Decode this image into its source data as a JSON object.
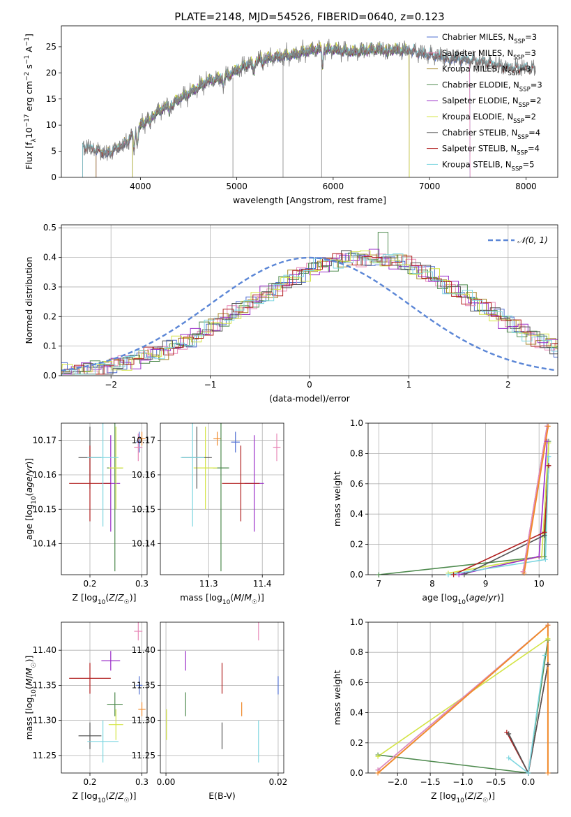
{
  "figure_title": "PLATE=2148, MJD=54526, FIBERID=0640, z=0.123",
  "colors": {
    "Chabrier MILES": "#4f6fd1",
    "Salpeter MILES": "#e889b8",
    "Kroupa MILES": "#a6872a",
    "Chabrier ELODIE": "#4e8a4e",
    "Salpeter ELODIE": "#9a2cc8",
    "Kroupa ELODIE": "#d4e447",
    "Chabrier STELIB": "#555555",
    "Salpeter STELIB": "#b01e1e",
    "Kroupa STELIB": "#7dd6e0",
    "orange": "#f08a2c",
    "gaussian": "#5b86d6"
  },
  "chart_data": [
    {
      "id": "spectrum",
      "type": "line",
      "xlabel": "wavelength [Angstrom, rest frame]",
      "ylabel_html": "Flux [f<tspan baseline-shift='sub' font-size='9'>λ</tspan>10<tspan baseline-shift='super' font-size='9'>−17</tspan> erg cm<tspan baseline-shift='super' font-size='9'>−2</tspan> s<tspan baseline-shift='super' font-size='9'>−1</tspan> A<tspan baseline-shift='super' font-size='9'>−1</tspan>]",
      "xlim": [
        3180,
        8330
      ],
      "ylim": [
        0,
        29
      ],
      "xticks": [
        4000,
        5000,
        6000,
        7000,
        8000
      ],
      "yticks": [
        0,
        5,
        10,
        15,
        20,
        25
      ],
      "grid": false,
      "legend_placement": "right",
      "legend": [
        {
          "label": "Chabrier MILES, N",
          "sub": "SSP",
          "tail": "=3",
          "color_key": "Chabrier MILES"
        },
        {
          "label": "Salpeter MILES, N",
          "sub": "SSP",
          "tail": "=3",
          "color_key": "Salpeter MILES"
        },
        {
          "label": "Kroupa MILES, N",
          "sub": "SSP",
          "tail": "=3",
          "color_key": "Kroupa MILES"
        },
        {
          "label": "Chabrier ELODIE, N",
          "sub": "SSP",
          "tail": "=3",
          "color_key": "Chabrier ELODIE"
        },
        {
          "label": "Salpeter ELODIE, N",
          "sub": "SSP",
          "tail": "=2",
          "color_key": "Salpeter ELODIE"
        },
        {
          "label": "Kroupa ELODIE, N",
          "sub": "SSP",
          "tail": "=2",
          "color_key": "Kroupa ELODIE"
        },
        {
          "label": "Chabrier STELIB, N",
          "sub": "SSP",
          "tail": "=4",
          "color_key": "Chabrier STELIB"
        },
        {
          "label": "Salpeter STELIB, N",
          "sub": "SSP",
          "tail": "=4",
          "color_key": "Salpeter STELIB"
        },
        {
          "label": "Kroupa STELIB, N",
          "sub": "SSP",
          "tail": "=5",
          "color_key": "Kroupa STELIB"
        }
      ],
      "continuum": {
        "x": [
          3400,
          3550,
          3650,
          3750,
          3850,
          3950,
          4100,
          4300,
          4500,
          4700,
          4850,
          5000,
          5200,
          5400,
          5600,
          5800,
          6000,
          6200,
          6400,
          6600,
          6800,
          7000,
          7200,
          7400,
          7600,
          7800,
          8000,
          8100
        ],
        "y": [
          6.0,
          5.2,
          4.5,
          5.5,
          6.5,
          9.0,
          11.5,
          14.0,
          16.0,
          18.5,
          19.0,
          20.5,
          22.5,
          23.0,
          23.5,
          24.5,
          24.5,
          24.0,
          24.5,
          24.5,
          24.3,
          23.5,
          23.0,
          22.5,
          22.0,
          21.0,
          21.0,
          20.8
        ]
      },
      "model_start": {
        "Chabrier MILES": 3540,
        "Salpeter MILES": 3540,
        "Kroupa MILES": 3540,
        "Chabrier ELODIE": 3920,
        "Salpeter ELODIE": 3920,
        "Kroupa ELODIE": 3920,
        "Chabrier STELIB": 3400,
        "Salpeter STELIB": 3400,
        "Kroupa STELIB": 3400
      },
      "model_end": {
        "Chabrier MILES": 7420,
        "Salpeter MILES": 7420,
        "Kroupa MILES": 6790,
        "Chabrier ELODIE": 6790,
        "Salpeter ELODIE": 6790,
        "Kroupa ELODIE": 6790,
        "Chabrier STELIB": 8100,
        "Salpeter STELIB": 8100,
        "Kroupa STELIB": 8100
      },
      "spikes": [
        4960,
        5480,
        5880
      ]
    },
    {
      "id": "residuals",
      "type": "histogram",
      "xlabel": "(data-model)/error",
      "ylabel": "Normed distribution",
      "xlim": [
        -2.5,
        2.5
      ],
      "ylim": [
        0,
        0.51
      ],
      "xticks": [
        -2,
        -1,
        0,
        1,
        2
      ],
      "yticks": [
        0.0,
        0.1,
        0.2,
        0.3,
        0.4,
        0.5
      ],
      "grid": true,
      "legend_placement": "top-right",
      "gaussian_label": "𝒩(0, 1)",
      "bin_width": 0.1,
      "hist_mean": 0.55,
      "hist_sigma": 1.15,
      "hist_peak": 0.4
    },
    {
      "id": "age_vs_Z",
      "type": "scatter",
      "xlabel_html": "Z [log<tspan baseline-shift='sub' font-size='9'>10</tspan>(<tspan font-style='italic'>Z</tspan>/<tspan font-style='italic'>Z</tspan><tspan baseline-shift='sub' font-size='9'>☉</tspan>)]",
      "ylabel_html": "age  [log<tspan baseline-shift='sub' font-size='9'>10</tspan>(<tspan font-style='italic'>age</tspan>/<tspan font-style='italic'>yr</tspan>)]",
      "xlim": [
        0.145,
        0.31
      ],
      "ylim": [
        10.131,
        10.175
      ],
      "xticks": [
        0.2,
        0.3
      ],
      "yticks": [
        10.14,
        10.15,
        10.16,
        10.17
      ],
      "grid": true
    },
    {
      "id": "age_vs_mass",
      "type": "scatter",
      "xlabel_html": "mass [log<tspan baseline-shift='sub' font-size='9'>10</tspan>(<tspan font-style='italic'>M</tspan>/<tspan font-style='italic'>M</tspan><tspan baseline-shift='sub' font-size='9'>☉</tspan>)]",
      "xlim": [
        11.21,
        11.44
      ],
      "ylim": [
        10.131,
        10.175
      ],
      "xticks": [
        11.3,
        11.4
      ],
      "yticks": [
        10.14,
        10.15,
        10.16,
        10.17
      ],
      "grid": true
    },
    {
      "id": "weight_vs_age",
      "type": "line",
      "xlabel_html": "age  [log<tspan baseline-shift='sub' font-size='9'>10</tspan>(<tspan font-style='italic'>age</tspan>/<tspan font-style='italic'>yr</tspan>)]",
      "ylabel": "mass weight",
      "xlim": [
        6.8,
        10.35
      ],
      "ylim": [
        0,
        1.0
      ],
      "xticks": [
        7,
        8,
        9,
        10
      ],
      "yticks": [
        0.0,
        0.2,
        0.4,
        0.6,
        0.8,
        1.0
      ],
      "grid": true,
      "series": [
        {
          "color_key": "Chabrier ELODIE",
          "x": [
            7.0,
            10.1,
            10.18
          ],
          "y": [
            0.0,
            0.12,
            0.88
          ]
        },
        {
          "color_key": "Kroupa ELODIE",
          "x": [
            8.3,
            10.05,
            10.18
          ],
          "y": [
            0.01,
            0.12,
            0.87
          ]
        },
        {
          "color_key": "Salpeter ELODIE",
          "x": [
            8.5,
            10.0,
            10.15
          ],
          "y": [
            0.0,
            0.12,
            0.88
          ]
        },
        {
          "color_key": "Chabrier STELIB",
          "x": [
            8.6,
            10.1,
            10.18
          ],
          "y": [
            0.0,
            0.26,
            0.72
          ]
        },
        {
          "color_key": "Salpeter STELIB",
          "x": [
            8.4,
            10.1,
            10.18
          ],
          "y": [
            0.0,
            0.28,
            0.72
          ]
        },
        {
          "color_key": "Kroupa STELIB",
          "x": [
            8.3,
            10.12,
            10.18
          ],
          "y": [
            0.0,
            0.1,
            0.78
          ]
        },
        {
          "color_key": "Chabrier MILES",
          "x": [
            9.7,
            10.15
          ],
          "y": [
            0.02,
            0.98
          ]
        },
        {
          "color_key": "Salpeter MILES",
          "x": [
            9.7,
            10.15
          ],
          "y": [
            0.02,
            0.98
          ]
        },
        {
          "color_key": "orange",
          "x": [
            9.72,
            10.17
          ],
          "y": [
            0.01,
            0.98
          ]
        }
      ]
    },
    {
      "id": "mass_vs_Z",
      "type": "scatter",
      "xlabel_html": "Z [log<tspan baseline-shift='sub' font-size='9'>10</tspan>(<tspan font-style='italic'>Z</tspan>/<tspan font-style='italic'>Z</tspan><tspan baseline-shift='sub' font-size='9'>☉</tspan>)]",
      "ylabel_html": "mass [log<tspan baseline-shift='sub' font-size='9'>10</tspan>(<tspan font-style='italic'>M</tspan>/<tspan font-style='italic'>M</tspan><tspan baseline-shift='sub' font-size='9'>☉</tspan>)]",
      "xlim": [
        0.145,
        0.31
      ],
      "ylim": [
        11.225,
        11.44
      ],
      "xticks": [
        0.2,
        0.3
      ],
      "yticks": [
        11.25,
        11.3,
        11.35,
        11.4
      ],
      "grid": true
    },
    {
      "id": "mass_vs_ebv",
      "type": "scatter",
      "xlabel": "E(B-V)",
      "xlim": [
        -0.001,
        0.021
      ],
      "ylim": [
        11.225,
        11.44
      ],
      "xticks": [
        0.0,
        0.02
      ],
      "yticks": [
        11.25,
        11.3,
        11.35,
        11.4
      ],
      "grid": true
    },
    {
      "id": "weight_vs_Z",
      "type": "line",
      "xlabel_html": "Z [log<tspan baseline-shift='sub' font-size='9'>10</tspan>(<tspan font-style='italic'>Z</tspan>/<tspan font-style='italic'>Z</tspan><tspan baseline-shift='sub' font-size='9'>☉</tspan>)]",
      "ylabel": "mass weight",
      "xlim": [
        -2.45,
        0.45
      ],
      "ylim": [
        0,
        1.0
      ],
      "xticks": [
        -2.0,
        -1.5,
        -1.0,
        -0.5,
        0.0
      ],
      "yticks": [
        0.0,
        0.2,
        0.4,
        0.6,
        0.8,
        1.0
      ],
      "grid": true,
      "series": [
        {
          "color_key": "Chabrier ELODIE",
          "x": [
            -2.3,
            0.0,
            0.3
          ],
          "y": [
            0.12,
            0.0,
            0.88
          ]
        },
        {
          "color_key": "Kroupa ELODIE",
          "x": [
            -2.3,
            0.3
          ],
          "y": [
            0.11,
            0.89
          ]
        },
        {
          "color_key": "Salpeter STELIB",
          "x": [
            -0.33,
            0.0,
            0.3
          ],
          "y": [
            0.27,
            0.0,
            0.72
          ]
        },
        {
          "color_key": "Chabrier STELIB",
          "x": [
            -0.3,
            0.0,
            0.3
          ],
          "y": [
            0.26,
            0.0,
            0.72
          ]
        },
        {
          "color_key": "Kroupa STELIB",
          "x": [
            -0.3,
            0.0,
            0.25
          ],
          "y": [
            0.1,
            0.0,
            0.78
          ]
        },
        {
          "color_key": "Chabrier MILES",
          "x": [
            -2.3,
            0.3
          ],
          "y": [
            0.02,
            0.98
          ]
        },
        {
          "color_key": "Salpeter MILES",
          "x": [
            -2.3,
            0.3
          ],
          "y": [
            0.02,
            0.98
          ]
        },
        {
          "color_key": "orange",
          "x": [
            -2.3,
            0.3,
            0.3
          ],
          "y": [
            0.0,
            0.98,
            0.0
          ]
        }
      ]
    }
  ],
  "fits": [
    {
      "color_key": "Chabrier MILES",
      "Z": 0.295,
      "Zerr": 0.006,
      "age": 10.1695,
      "ageerr": 0.003,
      "mass": 11.35,
      "masserr": 0.013,
      "masserr_x": 0.008,
      "ebv": 0.02
    },
    {
      "color_key": "Salpeter MILES",
      "Z": 0.293,
      "Zerr": 0.008,
      "age": 10.168,
      "ageerr": 0.004,
      "mass": 11.427,
      "masserr": 0.013,
      "masserr_x": 0.007,
      "ebv": 0.0165
    },
    {
      "color_key": "orange",
      "Z": 0.3,
      "Zerr": 0.007,
      "age": 10.1705,
      "ageerr": 0.002,
      "mass": 11.316,
      "masserr": 0.01,
      "masserr_x": 0.007,
      "ebv": 0.0135
    },
    {
      "color_key": "Chabrier ELODIE",
      "Z": 0.248,
      "Zerr": 0.015,
      "age": 10.162,
      "ageerr": 0.03,
      "mass": 11.323,
      "masserr": 0.017,
      "masserr_x": 0.015,
      "ebv": 0.0035
    },
    {
      "color_key": "Salpeter ELODIE",
      "Z": 0.24,
      "Zerr": 0.018,
      "age": 10.1575,
      "ageerr": 0.014,
      "mass": 11.385,
      "masserr": 0.014,
      "masserr_x": 0.018,
      "ebv": 0.0035
    },
    {
      "color_key": "Kroupa ELODIE",
      "Z": 0.25,
      "Zerr": 0.014,
      "age": 10.162,
      "ageerr": 0.012,
      "mass": 11.294,
      "masserr": 0.022,
      "masserr_x": 0.022,
      "ebv": 0.0001
    },
    {
      "color_key": "Chabrier STELIB",
      "Z": 0.2,
      "Zerr": 0.022,
      "age": 10.165,
      "ageerr": 0.009,
      "mass": 11.278,
      "masserr": 0.019,
      "masserr_x": 0.028,
      "ebv": 0.01
    },
    {
      "color_key": "Salpeter STELIB",
      "Z": 0.2,
      "Zerr": 0.04,
      "age": 10.1575,
      "ageerr": 0.011,
      "mass": 11.36,
      "masserr": 0.022,
      "masserr_x": 0.035,
      "ebv": 0.01
    },
    {
      "color_key": "Kroupa STELIB",
      "Z": 0.225,
      "Zerr": 0.03,
      "age": 10.165,
      "ageerr": 0.02,
      "mass": 11.27,
      "masserr": 0.03,
      "masserr_x": 0.022,
      "ebv": 0.0165
    }
  ]
}
